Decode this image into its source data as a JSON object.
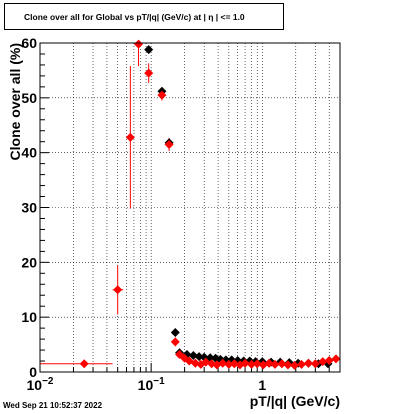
{
  "title": "Clone  over all for Global vs pT/|q| (GeV/c) at |  η  | <= 1.0",
  "timestamp": "Wed Sep 21 10:52:37 2022",
  "chart_data": {
    "type": "scatter",
    "title": "Clone  over all for Global vs pT/|q| (GeV/c) at |  η  | <= 1.0",
    "xlabel": "pT/|q| (GeV/c)",
    "ylabel": "Clone  over all (%)",
    "xscale": "log",
    "xlim": [
      0.01,
      5
    ],
    "ylim": [
      0,
      60
    ],
    "grid": true,
    "x_tick_labels": [
      {
        "value": 0.01,
        "base": "10",
        "exp": "−2"
      },
      {
        "value": 0.1,
        "base": "10",
        "exp": "−1"
      },
      {
        "value": 1,
        "base": "1",
        "exp": ""
      }
    ],
    "y_ticks": [
      0,
      10,
      20,
      30,
      40,
      50,
      60
    ],
    "series": [
      {
        "color": "#000000",
        "marker": "diamond",
        "points": [
          {
            "x": 0.095,
            "y": 58.8
          },
          {
            "x": 0.125,
            "y": 51.2
          },
          {
            "x": 0.145,
            "y": 41.8
          },
          {
            "x": 0.165,
            "y": 7.2
          },
          {
            "x": 0.18,
            "y": 3.5
          },
          {
            "x": 0.21,
            "y": 3.2
          },
          {
            "x": 0.24,
            "y": 3.0
          },
          {
            "x": 0.27,
            "y": 2.8
          },
          {
            "x": 0.3,
            "y": 2.7
          },
          {
            "x": 0.34,
            "y": 2.6
          },
          {
            "x": 0.38,
            "y": 2.5
          },
          {
            "x": 0.42,
            "y": 2.3
          },
          {
            "x": 0.47,
            "y": 2.2
          },
          {
            "x": 0.53,
            "y": 2.2
          },
          {
            "x": 0.6,
            "y": 2.1
          },
          {
            "x": 0.68,
            "y": 2.0
          },
          {
            "x": 0.77,
            "y": 2.0
          },
          {
            "x": 0.87,
            "y": 1.9
          },
          {
            "x": 1.0,
            "y": 1.9
          },
          {
            "x": 1.2,
            "y": 1.8
          },
          {
            "x": 1.45,
            "y": 1.8
          },
          {
            "x": 1.75,
            "y": 1.7
          },
          {
            "x": 2.1,
            "y": 1.6
          },
          {
            "x": 2.6,
            "y": 1.6
          },
          {
            "x": 3.2,
            "y": 1.5
          },
          {
            "x": 3.9,
            "y": 1.5
          }
        ]
      },
      {
        "color": "#ff0000",
        "marker": "diamond",
        "points": [
          {
            "x": 0.025,
            "y": 1.5,
            "xerr": [
              0.01,
              0.045
            ],
            "yerr": 0.7
          },
          {
            "x": 0.05,
            "y": 15.0,
            "xerr": [
              0.045,
              0.056
            ],
            "yerr": 4.5
          },
          {
            "x": 0.065,
            "y": 42.8,
            "xerr": [
              0.062,
              0.068
            ],
            "yerr": 13
          },
          {
            "x": 0.077,
            "y": 59.8,
            "xerr": [
              0.074,
              0.08
            ],
            "yerr": 4
          },
          {
            "x": 0.095,
            "y": 54.5,
            "xerr": [
              0.092,
              0.098
            ],
            "yerr": 1.8
          },
          {
            "x": 0.125,
            "y": 50.5,
            "yerr": 1.0
          },
          {
            "x": 0.145,
            "y": 41.5,
            "yerr": 1.2
          },
          {
            "x": 0.165,
            "y": 5.5,
            "yerr": 0.8
          },
          {
            "x": 0.18,
            "y": 3.2,
            "yerr": 0.5
          },
          {
            "x": 0.2,
            "y": 2.5
          },
          {
            "x": 0.22,
            "y": 2.0
          },
          {
            "x": 0.25,
            "y": 1.6
          },
          {
            "x": 0.28,
            "y": 1.4
          },
          {
            "x": 0.31,
            "y": 1.8
          },
          {
            "x": 0.35,
            "y": 1.5
          },
          {
            "x": 0.39,
            "y": 1.3
          },
          {
            "x": 0.44,
            "y": 1.6
          },
          {
            "x": 0.5,
            "y": 1.4
          },
          {
            "x": 0.56,
            "y": 1.5
          },
          {
            "x": 0.63,
            "y": 1.3
          },
          {
            "x": 0.7,
            "y": 1.6
          },
          {
            "x": 0.8,
            "y": 1.4
          },
          {
            "x": 0.9,
            "y": 1.5
          },
          {
            "x": 1.02,
            "y": 1.3
          },
          {
            "x": 1.15,
            "y": 1.6
          },
          {
            "x": 1.3,
            "y": 1.4
          },
          {
            "x": 1.5,
            "y": 1.5
          },
          {
            "x": 1.7,
            "y": 1.3
          },
          {
            "x": 1.95,
            "y": 1.2
          },
          {
            "x": 2.25,
            "y": 1.4
          },
          {
            "x": 2.6,
            "y": 1.6
          },
          {
            "x": 3.0,
            "y": 1.5
          },
          {
            "x": 3.5,
            "y": 1.9
          },
          {
            "x": 4.0,
            "y": 2.1
          },
          {
            "x": 4.6,
            "y": 2.4
          }
        ]
      }
    ]
  }
}
